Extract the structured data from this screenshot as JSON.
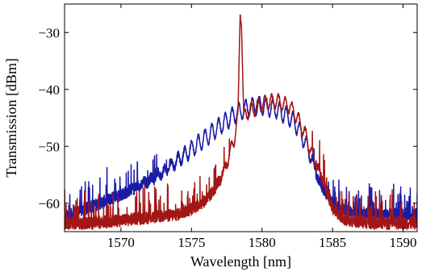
{
  "chart_data": {
    "type": "line",
    "title": "",
    "xlabel": "Wavelength [nm]",
    "ylabel": "Transmission [dBm]",
    "xlim": [
      1566,
      1591
    ],
    "ylim": [
      -65,
      -25
    ],
    "xticks": [
      1570,
      1575,
      1580,
      1585,
      1590
    ],
    "yticks": [
      -30,
      -40,
      -50,
      -60
    ],
    "ytick_labels": [
      "−30",
      "−40",
      "−50",
      "−60"
    ],
    "grid": false,
    "legend": "none",
    "series": [
      {
        "color": "#1a1aa6",
        "ripple_amplitude_db": 1.5,
        "ripple_period_nm": 0.48,
        "x": [
          1566,
          1567,
          1568,
          1569,
          1570,
          1571,
          1572,
          1573,
          1574,
          1575,
          1576,
          1577,
          1578,
          1579,
          1580,
          1581,
          1582,
          1582.5,
          1583,
          1583.5,
          1584,
          1585,
          1586,
          1587,
          1588,
          1589,
          1590,
          1591
        ],
        "values": [
          -62.5,
          -61.5,
          -60.5,
          -59.5,
          -58.5,
          -57.3,
          -56,
          -54.5,
          -52.5,
          -50.5,
          -48.5,
          -46.5,
          -44.5,
          -43.2,
          -42.8,
          -43.5,
          -45,
          -46.5,
          -49,
          -52,
          -56,
          -60,
          -61.5,
          -62,
          -62,
          -62,
          -62,
          -62
        ]
      },
      {
        "color": "#a31616",
        "ripple_amplitude_db": 1.2,
        "ripple_period_nm": 0.48,
        "x": [
          1566,
          1568,
          1570,
          1572,
          1574,
          1575,
          1576,
          1576.5,
          1577,
          1577.5,
          1578,
          1578.3,
          1578.45,
          1578.55,
          1578.7,
          1579,
          1580,
          1581,
          1582,
          1582.5,
          1583,
          1583.5,
          1584,
          1584.5,
          1585,
          1586,
          1588,
          1591
        ],
        "values": [
          -63.5,
          -63.5,
          -63,
          -62.5,
          -62,
          -61,
          -59.5,
          -58,
          -56,
          -53,
          -49,
          -45,
          -26,
          -28,
          -45,
          -44,
          -42.5,
          -42,
          -43,
          -45,
          -47.5,
          -51,
          -54,
          -57,
          -61,
          -63,
          -63.5,
          -63.5
        ]
      }
    ]
  }
}
